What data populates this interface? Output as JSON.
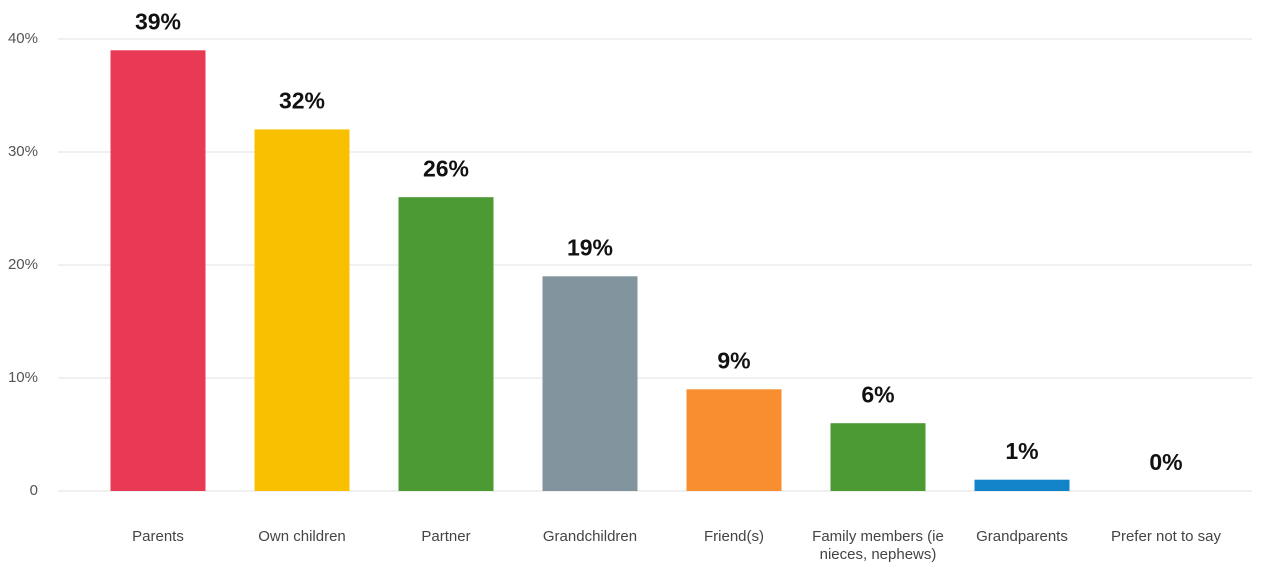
{
  "chart_data": {
    "type": "bar",
    "categories": [
      "Parents",
      "Own children",
      "Partner",
      "Grandchildren",
      "Friend(s)",
      "Family members (ie nieces, nephews)",
      "Grandparents",
      "Prefer not to say"
    ],
    "values": [
      39,
      32,
      26,
      19,
      9,
      6,
      1,
      0
    ],
    "value_labels": [
      "39%",
      "32%",
      "26%",
      "19%",
      "9%",
      "6%",
      "1%",
      "0%"
    ],
    "colors": [
      "#e83a54",
      "#f8c000",
      "#4b9a33",
      "#82959e",
      "#f98e31",
      "#4b9a33",
      "#1283c8",
      "#1283c8"
    ],
    "ylim": [
      0,
      40
    ],
    "yticks": [
      0,
      {
        "value": 10,
        "label": "10%"
      },
      {
        "value": 20,
        "label": "20%"
      },
      {
        "value": 30,
        "label": "30%"
      },
      {
        "value": 40,
        "label": "40%"
      }
    ],
    "grid": true
  }
}
